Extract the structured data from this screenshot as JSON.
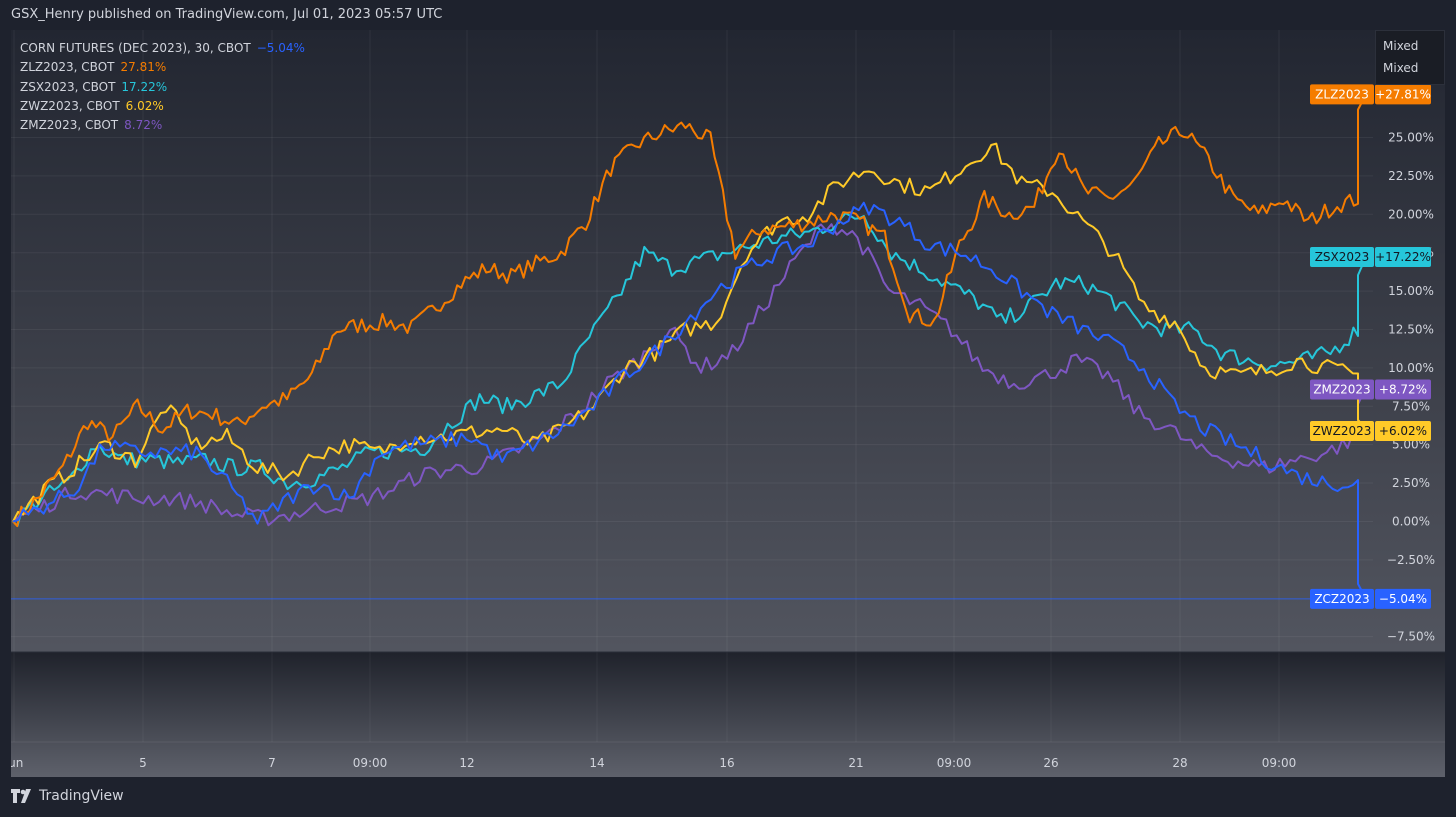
{
  "header": "GSX_Henry published on TradingView.com, Jul 01, 2023 05:57 UTC",
  "footer": {
    "brand": "TradingView"
  },
  "mixed": [
    "Mixed",
    "Mixed"
  ],
  "legend": [
    {
      "label": "CORN FUTURES (DEC 2023), 30, CBOT",
      "value": "−5.04%",
      "color": "#2962ff"
    },
    {
      "label": "ZLZ2023, CBOT",
      "value": "27.81%",
      "color": "#f57c00"
    },
    {
      "label": "ZSX2023, CBOT",
      "value": "17.22%",
      "color": "#26c6da"
    },
    {
      "label": "ZWZ2023, CBOT",
      "value": "6.02%",
      "color": "#ffca28"
    },
    {
      "label": "ZMZ2023, CBOT",
      "value": "8.72%",
      "color": "#7e57c2"
    }
  ],
  "chart_data": {
    "type": "line",
    "y_unit": "%",
    "ylim": [
      -8.5,
      32
    ],
    "y_ticks": [
      25,
      22.5,
      20,
      17.5,
      15,
      12.5,
      10,
      7.5,
      5,
      2.5,
      0,
      -2.5,
      -7.5
    ],
    "y_tick_labels": [
      "25.00%",
      "22.50%",
      "20.00%",
      "17.50%",
      "15.00%",
      "12.50%",
      "10.00%",
      "7.50%",
      "5.00%",
      "2.50%",
      "0.00%",
      "−2.50%",
      "−7.50%"
    ],
    "x_ticks": [
      "Jun",
      "5",
      "7",
      "09:00",
      "12",
      "14",
      "16",
      "21",
      "09:00",
      "26",
      "28",
      "09:00"
    ],
    "series": [
      {
        "name": "ZLZ2023",
        "color": "#f57c00",
        "tag": "+27.81%",
        "last": 27.81,
        "values": [
          0,
          1.5,
          3.5,
          6.5,
          5.5,
          7.5,
          6,
          7.2,
          7,
          6.3,
          7.5,
          8,
          9.5,
          12.5,
          12.8,
          13,
          12.6,
          14,
          15.5,
          16.5,
          16,
          16.8,
          17.5,
          19.5,
          23,
          24.5,
          25.3,
          25.8,
          24.8,
          17.5,
          19,
          19.2,
          19.5,
          20,
          19.5,
          18.5,
          13.5,
          13,
          18,
          21,
          20,
          20.5,
          24.5,
          21.5,
          21,
          22,
          24.5,
          25.5,
          23.5,
          21,
          20,
          21,
          19.5,
          20.5,
          21,
          27.81
        ]
      },
      {
        "name": "ZSX2023",
        "color": "#26c6da",
        "tag": "+17.22%",
        "last": 17.22,
        "values": [
          0,
          1.5,
          2.5,
          5,
          4,
          4,
          3.8,
          4,
          3.5,
          3.5,
          2.5,
          2.8,
          3.5,
          4.5,
          4.6,
          4.8,
          6.5,
          8,
          7.5,
          8.2,
          9,
          12,
          14.5,
          17.5,
          16.5,
          17,
          17.5,
          18,
          18.5,
          18.8,
          19.5,
          20,
          17.5,
          16.5,
          15.5,
          14.5,
          13,
          14,
          15.5,
          15.5,
          14.5,
          13,
          12.5,
          12.5,
          11,
          10.5,
          10.2,
          10.5,
          11,
          12.5,
          17.22
        ]
      },
      {
        "name": "ZWZ2023",
        "color": "#ffca28",
        "tag": "+6.02%",
        "last": 6.02,
        "values": [
          0,
          2,
          3.5,
          5,
          4,
          7.5,
          5,
          5.5,
          3.5,
          3,
          4.5,
          5,
          4.5,
          5.5,
          5.5,
          5.8,
          6,
          5,
          6,
          7.5,
          10,
          11,
          12.5,
          13,
          17.5,
          19.5,
          20,
          22,
          23,
          22,
          21.5,
          23,
          24.5,
          22,
          21.5,
          19.5,
          17.5,
          14,
          13,
          10,
          9.5,
          9.8,
          10.5,
          10,
          9.5,
          6.02
        ]
      },
      {
        "name": "ZMZ2023",
        "color": "#7e57c2",
        "tag": "+8.72%",
        "last": 8.72,
        "values": [
          0,
          1,
          2,
          1.8,
          1.5,
          1.5,
          1.2,
          0.5,
          0.2,
          0.5,
          1,
          1.3,
          2,
          3,
          3.4,
          3.6,
          4.5,
          5.5,
          7,
          9,
          10.5,
          12.5,
          10,
          11,
          14,
          17,
          19.5,
          18.5,
          15,
          14,
          12.5,
          10,
          9,
          9.5,
          10.5,
          9.5,
          7,
          6,
          4.5,
          4,
          3.5,
          4,
          4.5,
          5.5,
          8.72
        ]
      },
      {
        "name": "ZCZ2023",
        "color": "#2962ff",
        "tag": "−5.04%",
        "last": -5.04,
        "values": [
          0,
          1,
          2,
          5,
          4.5,
          4.5,
          4.5,
          2.5,
          0,
          1.5,
          2.5,
          1.5,
          4.5,
          5,
          5.2,
          5.5,
          4,
          5,
          6,
          7.5,
          9.5,
          11,
          13,
          15,
          16.5,
          17.5,
          18,
          19.5,
          20.5,
          19.5,
          18,
          17.5,
          16.5,
          15,
          13.5,
          12.5,
          11.5,
          10,
          7.5,
          6,
          5,
          4,
          3,
          2.5,
          2.5,
          -5.04
        ]
      }
    ]
  }
}
